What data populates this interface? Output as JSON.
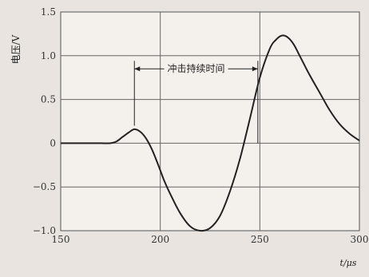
{
  "chart_data": {
    "type": "line",
    "title": "",
    "xlabel": "t/μs",
    "ylabel": "电压/V",
    "xlim": [
      150,
      300
    ],
    "ylim": [
      -1.0,
      1.5
    ],
    "x_ticks": [
      "150",
      "200",
      "250",
      "300"
    ],
    "y_ticks": [
      "1.5",
      "1.0",
      "0.5",
      "0",
      "−0.5",
      "−1.0"
    ],
    "grid": true,
    "series": [
      {
        "x": [
          150,
          155,
          160,
          165,
          170,
          175,
          178,
          181,
          184,
          187,
          190,
          193,
          196,
          199,
          202,
          205,
          210,
          215,
          220,
          225,
          230,
          235,
          240,
          245,
          250,
          255,
          258,
          261,
          264,
          267,
          270,
          275,
          280,
          285,
          290,
          295,
          300
        ],
        "y": [
          0,
          0,
          0,
          0,
          0,
          0,
          0.02,
          0.07,
          0.12,
          0.16,
          0.13,
          0.05,
          -0.08,
          -0.25,
          -0.43,
          -0.58,
          -0.8,
          -0.95,
          -1.0,
          -0.97,
          -0.83,
          -0.55,
          -0.18,
          0.28,
          0.75,
          1.08,
          1.18,
          1.23,
          1.21,
          1.13,
          1.0,
          0.78,
          0.58,
          0.38,
          0.22,
          0.11,
          0.03
        ]
      }
    ],
    "annotation": {
      "text": "冲击持续时间",
      "x_start": 187,
      "x_end": 249,
      "y": 0.85
    }
  }
}
